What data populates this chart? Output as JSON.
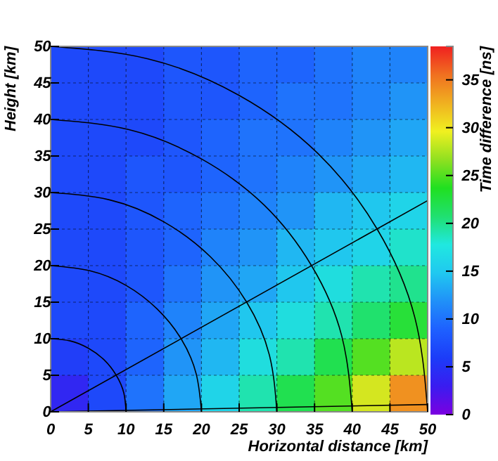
{
  "chart_data": [
    {
      "type": "heatmap",
      "clabel": "Time difference [ns]",
      "tick_labels": false,
      "categories": [
        null,
        null,
        null,
        null,
        null,
        null,
        null,
        null,
        null,
        null
      ],
      "y_categories": [
        null,
        null,
        null,
        null,
        null,
        null,
        null,
        null,
        null,
        null
      ],
      "clim": [
        0,
        38.5
      ],
      "cticks": [
        0,
        5,
        10,
        15,
        20,
        25,
        30,
        35
      ],
      "cells": [
        [
          7,
          7,
          7,
          8,
          8,
          9,
          9,
          10,
          11,
          11
        ],
        [
          7,
          7,
          7,
          8,
          8,
          9,
          10,
          10,
          11,
          12
        ],
        [
          7,
          7,
          7,
          8,
          9,
          10,
          10,
          11,
          12,
          13
        ],
        [
          7,
          7,
          8,
          8,
          9,
          10,
          11,
          12,
          13,
          14
        ],
        [
          7,
          7,
          8,
          9,
          10,
          11,
          12,
          14,
          15,
          16
        ],
        [
          7,
          7,
          8,
          9,
          11,
          12,
          14,
          15,
          16,
          18
        ],
        [
          7,
          7,
          8,
          10,
          12,
          13,
          15,
          17,
          19,
          20
        ],
        [
          7,
          7,
          9,
          11,
          13,
          15,
          17,
          19,
          21,
          23
        ],
        [
          6,
          7,
          9,
          12,
          14,
          17,
          19,
          22,
          25,
          28
        ],
        [
          4,
          7,
          10,
          13,
          16,
          19,
          22,
          25,
          29,
          34
        ]
      ]
    },
    {
      "type": "line",
      "xlabel": "Horizontal distance [km]",
      "ylabel": "Height [km]",
      "xlim": [
        0,
        50
      ],
      "ylim": [
        0,
        50
      ],
      "xticks": [
        0,
        5,
        10,
        15,
        20,
        25,
        30,
        35,
        40,
        45,
        50
      ],
      "yticks": [
        0,
        5,
        10,
        15,
        20,
        25,
        30,
        35,
        40,
        45,
        50
      ],
      "grid": true,
      "series": [
        {
          "color": "#000000",
          "x": [
            0,
            2.6,
            5,
            7.1,
            8.7,
            9.7,
            10
          ],
          "values": [
            10,
            9.7,
            8.7,
            7.1,
            5,
            2.6,
            0
          ]
        },
        {
          "color": "#000000",
          "x": [
            0,
            5.2,
            10,
            14.1,
            17.3,
            19.3,
            20
          ],
          "values": [
            20,
            19.3,
            17.3,
            14.1,
            10,
            5.2,
            0
          ]
        },
        {
          "color": "#000000",
          "x": [
            0,
            7.8,
            15,
            21.2,
            26,
            29,
            30
          ],
          "values": [
            30,
            29,
            26,
            21.2,
            15,
            7.8,
            0
          ]
        },
        {
          "color": "#000000",
          "x": [
            0,
            10.4,
            20,
            28.3,
            34.6,
            38.6,
            40
          ],
          "values": [
            40,
            38.6,
            34.6,
            28.3,
            20,
            10.4,
            0
          ]
        },
        {
          "color": "#000000",
          "x": [
            0,
            12.9,
            25,
            35.4,
            43.3,
            48.3,
            50
          ],
          "values": [
            50,
            48.3,
            43.3,
            35.4,
            25,
            12.9,
            0
          ]
        },
        {
          "color": "#000000",
          "x": [
            0,
            50
          ],
          "values": [
            0,
            28.9
          ]
        },
        {
          "color": "#000000",
          "x": [
            0,
            50
          ],
          "values": [
            0,
            1
          ]
        }
      ]
    }
  ]
}
